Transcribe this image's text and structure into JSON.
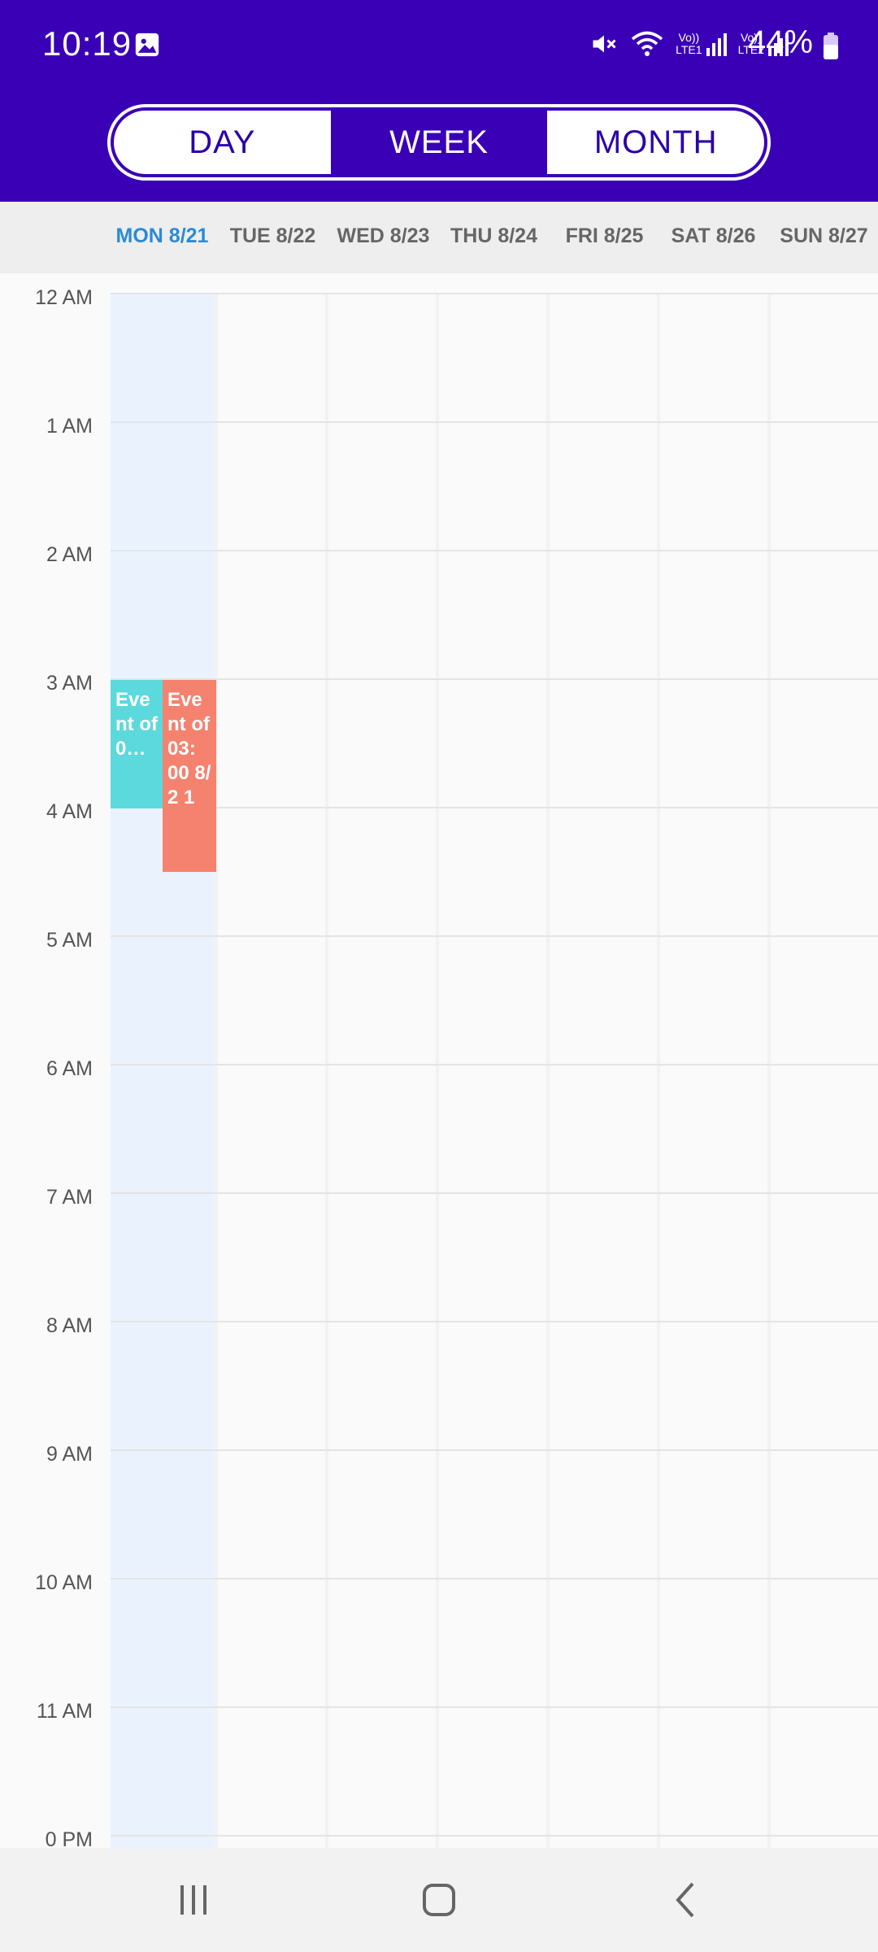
{
  "status_bar": {
    "time": "10:19",
    "battery_percent": "44%",
    "network_1": "LTE1",
    "network_2": "LTE2",
    "volte_label": "Vo))"
  },
  "view_switcher": {
    "day_label": "DAY",
    "week_label": "WEEK",
    "month_label": "MONTH",
    "selected": "WEEK"
  },
  "week_days": [
    {
      "label": "MON 8/21",
      "today": true
    },
    {
      "label": "TUE 8/22",
      "today": false
    },
    {
      "label": "WED 8/23",
      "today": false
    },
    {
      "label": "THU 8/24",
      "today": false
    },
    {
      "label": "FRI 8/25",
      "today": false
    },
    {
      "label": "SAT 8/26",
      "today": false
    },
    {
      "label": "SUN 8/27",
      "today": false
    }
  ],
  "hours": [
    "12 AM",
    "1 AM",
    "2 AM",
    "3 AM",
    "4 AM",
    "5 AM",
    "6 AM",
    "7 AM",
    "8 AM",
    "9 AM",
    "10 AM",
    "11 AM",
    "0 PM"
  ],
  "events": [
    {
      "text": "Eve nt of 0…",
      "color": "#5cd9dc"
    },
    {
      "text": "Eve nt of 03: 00 8/2 1",
      "color": "#f4826f"
    }
  ],
  "colors": {
    "primary": "#3a00b5",
    "today_label": "#2a8ad6",
    "today_column": "#eaf3fd"
  },
  "icons": {
    "status": [
      "gallery-icon",
      "mute-icon",
      "wifi-icon",
      "signal-icon",
      "battery-icon"
    ],
    "navigation": [
      "recents-icon",
      "home-icon",
      "back-icon"
    ]
  }
}
